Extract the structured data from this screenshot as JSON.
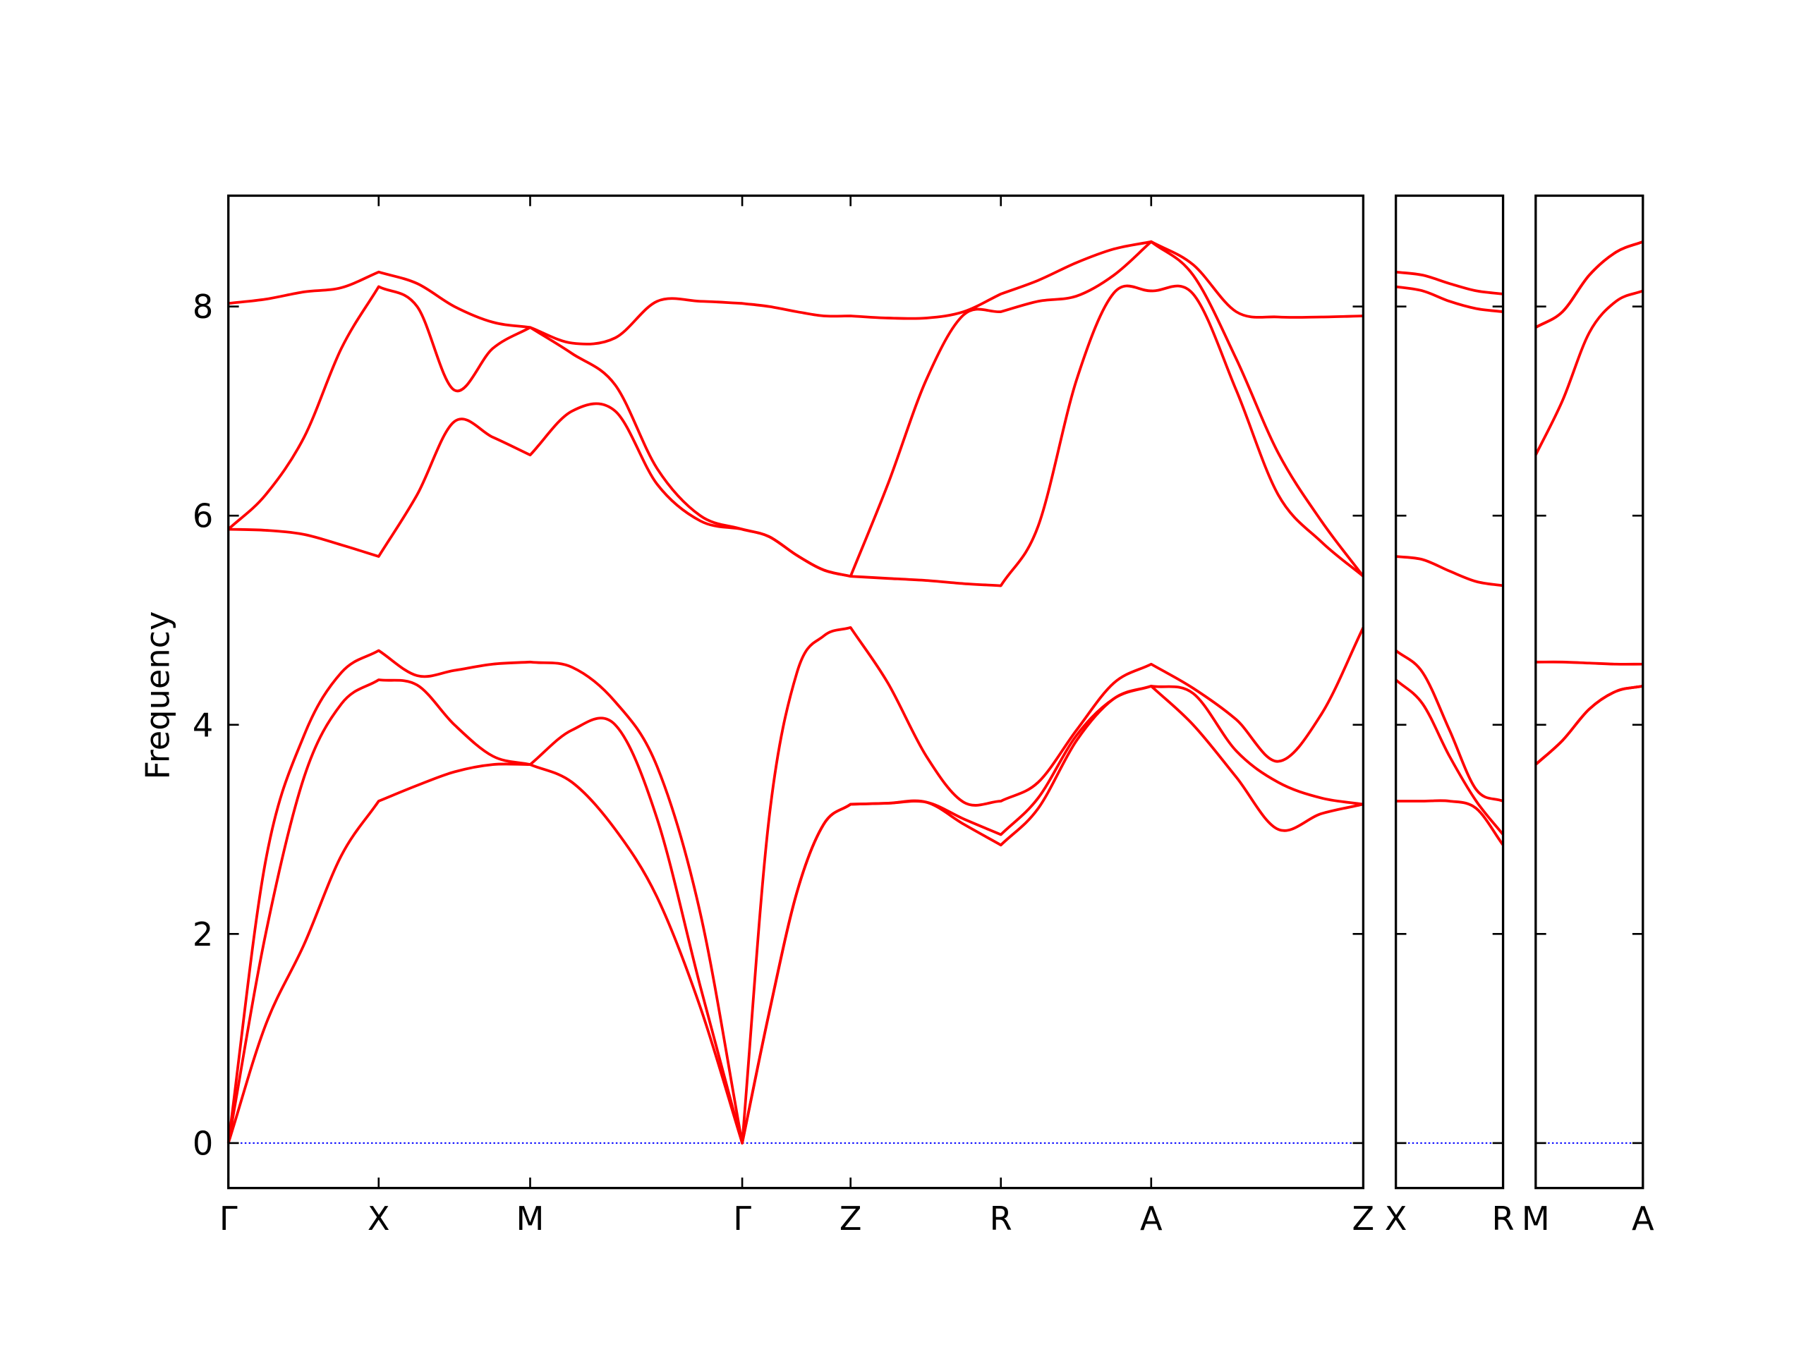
{
  "chart_data": [
    {
      "type": "line",
      "ylabel": "Frequency",
      "color": "#ff0000",
      "ylim": [
        -0.43,
        9.06
      ],
      "yticks": [
        0,
        2,
        4,
        6,
        8
      ],
      "hline": {
        "y": 0,
        "color": "#0000ff"
      },
      "xlim": [
        0,
        9.74
      ],
      "xticks": [
        {
          "value": 0,
          "label": "Γ"
        },
        {
          "value": 1.29,
          "label": "X"
        },
        {
          "value": 2.59,
          "label": "M"
        },
        {
          "value": 4.41,
          "label": "Γ"
        },
        {
          "value": 5.34,
          "label": "Z"
        },
        {
          "value": 6.63,
          "label": "R"
        },
        {
          "value": 7.92,
          "label": "A"
        },
        {
          "value": 9.74,
          "label": "Z"
        }
      ],
      "x": [
        0,
        0.32,
        0.65,
        0.97,
        1.29,
        1.62,
        1.94,
        2.27,
        2.59,
        2.95,
        3.32,
        3.68,
        4.05,
        4.41,
        4.64,
        4.88,
        5.11,
        5.34,
        5.66,
        5.99,
        6.31,
        6.63,
        6.95,
        7.28,
        7.6,
        7.92,
        8.28,
        8.65,
        9.01,
        9.38,
        9.74
      ],
      "series": [
        {
          "values": [
            0,
            1.13,
            1.9,
            2.75,
            3.27,
            3.42,
            3.55,
            3.62,
            3.62,
            3.45,
            3.0,
            2.35,
            1.3,
            0,
            1.24,
            2.4,
            3.05,
            3.24,
            3.25,
            3.26,
            3.05,
            2.85,
            3.2,
            3.85,
            4.25,
            4.37,
            4.0,
            3.5,
            3.0,
            3.15,
            3.24
          ]
        },
        {
          "values": [
            0,
            2.0,
            3.5,
            4.2,
            4.43,
            4.38,
            4.0,
            3.7,
            3.62,
            3.95,
            4.0,
            3.1,
            1.5,
            0,
            1.24,
            2.4,
            3.05,
            3.24,
            3.25,
            3.26,
            3.1,
            2.95,
            3.3,
            3.9,
            4.25,
            4.37,
            4.3,
            3.75,
            3.45,
            3.3,
            3.24
          ]
        },
        {
          "values": [
            0,
            2.7,
            3.9,
            4.5,
            4.71,
            4.47,
            4.52,
            4.58,
            4.6,
            4.55,
            4.22,
            3.6,
            2.2,
            0,
            3.1,
            4.5,
            4.85,
            4.93,
            4.4,
            3.7,
            3.26,
            3.27,
            3.45,
            3.95,
            4.4,
            4.58,
            4.35,
            4.05,
            3.65,
            4.1,
            4.93
          ]
        },
        {
          "values": [
            5.87,
            5.86,
            5.82,
            5.72,
            5.61,
            6.2,
            6.9,
            6.75,
            6.58,
            7.0,
            7.0,
            6.3,
            5.95,
            5.87,
            5.8,
            5.62,
            5.48,
            5.42,
            5.4,
            5.38,
            5.35,
            5.33,
            5.9,
            7.3,
            8.13,
            8.15,
            8.12,
            7.2,
            6.2,
            5.75,
            5.42
          ]
        },
        {
          "values": [
            5.87,
            6.2,
            6.75,
            7.6,
            8.19,
            8.0,
            7.2,
            7.6,
            7.8,
            7.55,
            7.25,
            6.45,
            6.0,
            5.87,
            5.8,
            5.62,
            5.48,
            5.42,
            6.3,
            7.3,
            7.92,
            7.95,
            8.05,
            8.1,
            8.3,
            8.62,
            8.3,
            7.5,
            6.6,
            5.95,
            5.42
          ]
        },
        {
          "values": [
            8.03,
            8.07,
            8.14,
            8.18,
            8.33,
            8.22,
            8.0,
            7.85,
            7.8,
            7.65,
            7.7,
            8.05,
            8.05,
            8.03,
            8.0,
            7.95,
            7.91,
            7.91,
            7.89,
            7.89,
            7.95,
            8.12,
            8.25,
            8.42,
            8.55,
            8.62,
            8.4,
            7.95,
            7.9,
            7.9,
            7.91
          ]
        }
      ]
    },
    {
      "type": "line",
      "color": "#ff0000",
      "xlim": [
        0,
        0.92
      ],
      "xticks": [
        {
          "value": 0,
          "label": "X"
        },
        {
          "value": 0.92,
          "label": "R"
        }
      ],
      "x": [
        0,
        0.23,
        0.46,
        0.69,
        0.92
      ],
      "series": [
        {
          "values": [
            3.27,
            3.27,
            3.27,
            3.2,
            2.85
          ]
        },
        {
          "values": [
            4.43,
            4.2,
            3.7,
            3.27,
            2.95
          ]
        },
        {
          "values": [
            4.71,
            4.5,
            3.95,
            3.38,
            3.27
          ]
        },
        {
          "values": [
            5.61,
            5.58,
            5.47,
            5.37,
            5.33
          ]
        },
        {
          "values": [
            8.19,
            8.15,
            8.05,
            7.98,
            7.95
          ]
        },
        {
          "values": [
            8.33,
            8.3,
            8.22,
            8.15,
            8.12
          ]
        }
      ]
    },
    {
      "type": "line",
      "color": "#ff0000",
      "xlim": [
        0,
        0.92
      ],
      "xticks": [
        {
          "value": 0,
          "label": "M"
        },
        {
          "value": 0.92,
          "label": "A"
        }
      ],
      "x": [
        0,
        0.23,
        0.46,
        0.69,
        0.92
      ],
      "series": [
        {
          "values": [
            3.62,
            3.85,
            4.15,
            4.32,
            4.37
          ]
        },
        {
          "values": [
            3.62,
            3.85,
            4.15,
            4.32,
            4.37
          ]
        },
        {
          "values": [
            4.6,
            4.6,
            4.59,
            4.58,
            4.58
          ]
        },
        {
          "values": [
            6.58,
            7.1,
            7.75,
            8.05,
            8.15
          ]
        },
        {
          "values": [
            7.8,
            7.95,
            8.3,
            8.52,
            8.62
          ]
        },
        {
          "values": [
            7.8,
            7.95,
            8.3,
            8.52,
            8.62
          ]
        }
      ]
    }
  ]
}
